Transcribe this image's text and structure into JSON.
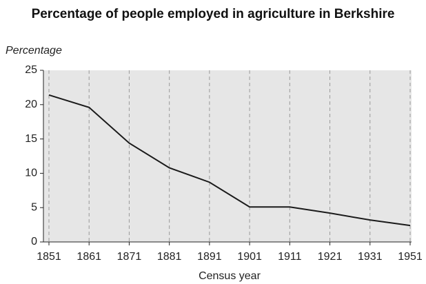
{
  "chart_data": {
    "type": "line",
    "title": "Percentage of people employed in agriculture in Berkshire",
    "y_label": "Percentage",
    "x_label": "Census year",
    "categories": [
      "1851",
      "1861",
      "1871",
      "1881",
      "1891",
      "1901",
      "1911",
      "1921",
      "1931",
      "1951"
    ],
    "values": [
      21.4,
      19.6,
      14.4,
      10.8,
      8.7,
      5.1,
      5.1,
      4.2,
      3.2,
      2.4
    ],
    "color": "#1a1a1a",
    "ylim": [
      0,
      25
    ],
    "yticks": [
      0,
      5,
      10,
      15,
      20,
      25
    ],
    "grid": true
  }
}
